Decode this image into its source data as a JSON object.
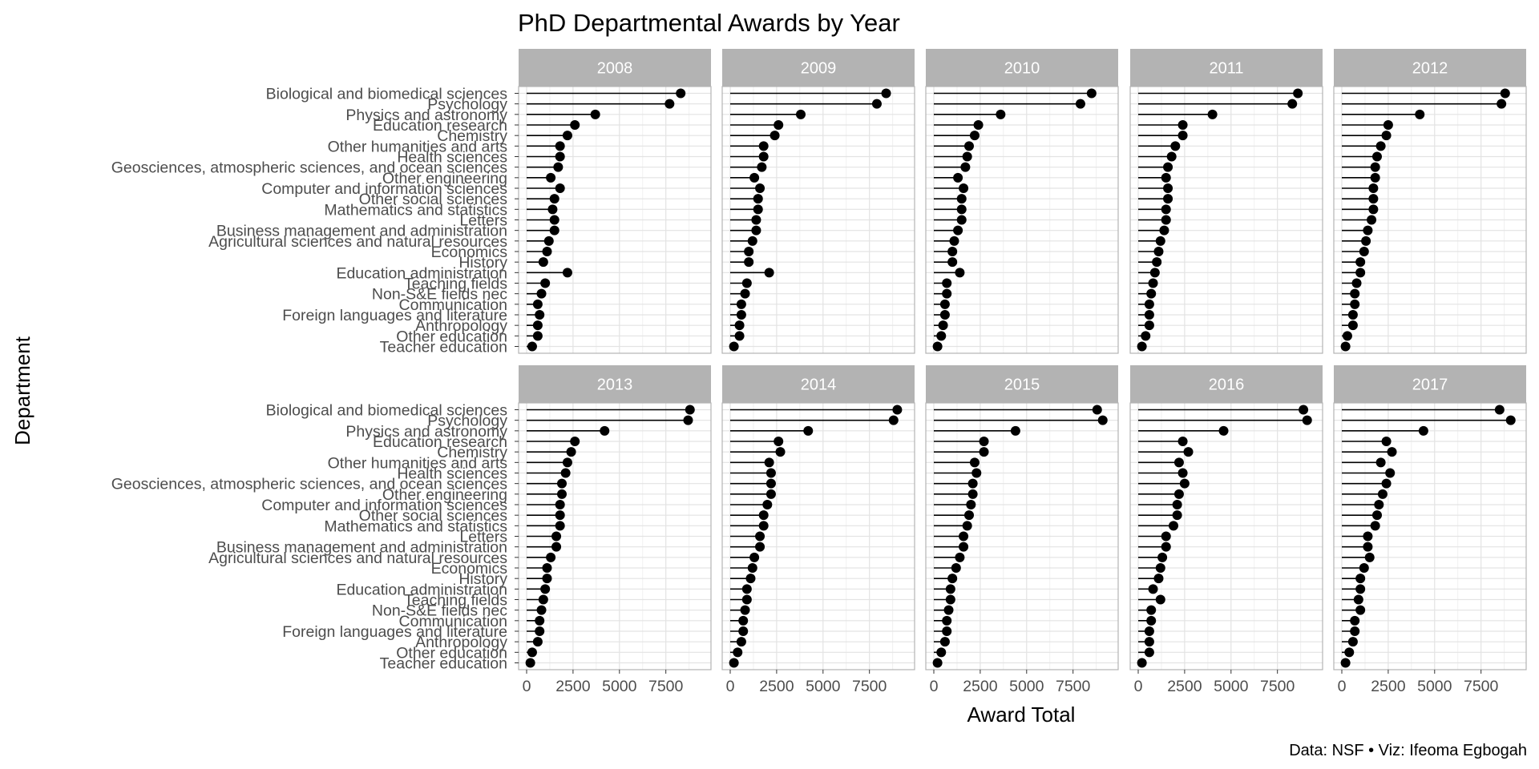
{
  "chart_data": {
    "type": "lollipop",
    "title": "PhD Departmental Awards by Year",
    "xlabel": "Award Total",
    "ylabel": "Department",
    "caption": "Data: NSF • Viz: Ifeoma Egbogah",
    "xlim": [
      0,
      9500
    ],
    "x_ticks": [
      0,
      2500,
      5000,
      7500
    ],
    "x_tick_labels": [
      "0",
      "2500",
      "5000",
      "7500"
    ],
    "grid": true,
    "facet_layout": {
      "rows": 2,
      "cols": 5
    },
    "categories": [
      "Biological and biomedical sciences",
      "Psychology",
      "Physics and astronomy",
      "Education research",
      "Chemistry",
      "Other humanities and arts",
      "Health sciences",
      "Geosciences, atmospheric sciences, and ocean sciences",
      "Other engineering",
      "Computer and information sciences",
      "Other social sciences",
      "Mathematics and statistics",
      "Letters",
      "Business management and administration",
      "Agricultural sciences and natural resources",
      "Economics",
      "History",
      "Education administration",
      "Teaching fields",
      "Non-S&E fields nec",
      "Communication",
      "Foreign languages and literature",
      "Anthropology",
      "Other education",
      "Teacher education"
    ],
    "panels": [
      {
        "name": "2008",
        "values": [
          8300,
          7700,
          3700,
          2600,
          2200,
          1800,
          1800,
          1700,
          1300,
          1800,
          1500,
          1400,
          1500,
          1500,
          1200,
          1100,
          900,
          2200,
          1000,
          800,
          600,
          700,
          600,
          600,
          300
        ]
      },
      {
        "name": "2009",
        "values": [
          8400,
          7900,
          3800,
          2600,
          2400,
          1800,
          1800,
          1700,
          1300,
          1600,
          1500,
          1500,
          1400,
          1400,
          1200,
          1000,
          1000,
          2100,
          900,
          800,
          600,
          600,
          500,
          500,
          200
        ]
      },
      {
        "name": "2010",
        "values": [
          8500,
          7900,
          3600,
          2400,
          2200,
          1900,
          1800,
          1700,
          1300,
          1600,
          1500,
          1500,
          1500,
          1300,
          1100,
          1000,
          1000,
          1400,
          700,
          700,
          600,
          600,
          500,
          400,
          200
        ]
      },
      {
        "name": "2011",
        "values": [
          8600,
          8300,
          4000,
          2400,
          2400,
          2000,
          1800,
          1600,
          1500,
          1600,
          1600,
          1500,
          1500,
          1400,
          1200,
          1100,
          1000,
          900,
          800,
          700,
          600,
          600,
          600,
          400,
          200
        ]
      },
      {
        "name": "2012",
        "values": [
          8800,
          8600,
          4200,
          2500,
          2400,
          2100,
          1900,
          1800,
          1800,
          1700,
          1700,
          1700,
          1600,
          1400,
          1300,
          1200,
          1000,
          1000,
          800,
          700,
          700,
          600,
          600,
          300,
          200
        ]
      },
      {
        "name": "2013",
        "values": [
          8800,
          8700,
          4200,
          2600,
          2400,
          2200,
          2100,
          1900,
          1900,
          1800,
          1800,
          1800,
          1600,
          1600,
          1300,
          1100,
          1100,
          1000,
          900,
          800,
          700,
          700,
          600,
          300,
          200
        ]
      },
      {
        "name": "2014",
        "values": [
          9000,
          8800,
          4200,
          2600,
          2700,
          2100,
          2200,
          2200,
          2200,
          2000,
          1800,
          1800,
          1600,
          1600,
          1300,
          1200,
          1100,
          900,
          900,
          800,
          700,
          700,
          600,
          400,
          200
        ]
      },
      {
        "name": "2015",
        "values": [
          8800,
          9100,
          4400,
          2700,
          2700,
          2200,
          2300,
          2100,
          2100,
          2000,
          1900,
          1800,
          1600,
          1600,
          1400,
          1200,
          1000,
          900,
          900,
          800,
          700,
          700,
          600,
          400,
          200
        ]
      },
      {
        "name": "2016",
        "values": [
          8900,
          9100,
          4600,
          2400,
          2700,
          2200,
          2400,
          2500,
          2200,
          2100,
          2100,
          1900,
          1500,
          1500,
          1300,
          1200,
          1100,
          800,
          1200,
          700,
          700,
          600,
          600,
          600,
          200
        ]
      },
      {
        "name": "2017",
        "values": [
          8500,
          9100,
          4400,
          2400,
          2700,
          2100,
          2600,
          2400,
          2200,
          2000,
          1900,
          1800,
          1400,
          1400,
          1500,
          1200,
          1000,
          1000,
          900,
          1000,
          700,
          700,
          600,
          400,
          200
        ]
      }
    ]
  }
}
